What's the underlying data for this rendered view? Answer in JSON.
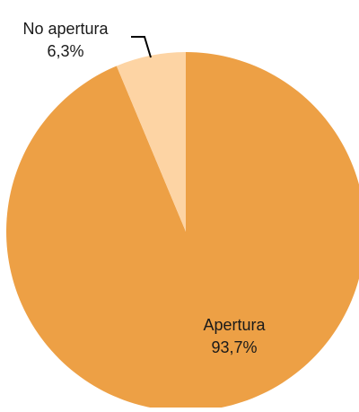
{
  "chart_data": {
    "type": "pie",
    "slices": [
      {
        "label": "Apertura",
        "value": 93.7,
        "value_label": "93,7%",
        "color": "#eda045"
      },
      {
        "label": "No apertura",
        "value": 6.3,
        "value_label": "6,3%",
        "color": "#fdd4a4"
      }
    ],
    "start_angle_deg": 0,
    "direction": "clockwise",
    "legend": "none"
  },
  "colors": {
    "leader_line": "#000000",
    "label_text": "#1a1a1a"
  }
}
